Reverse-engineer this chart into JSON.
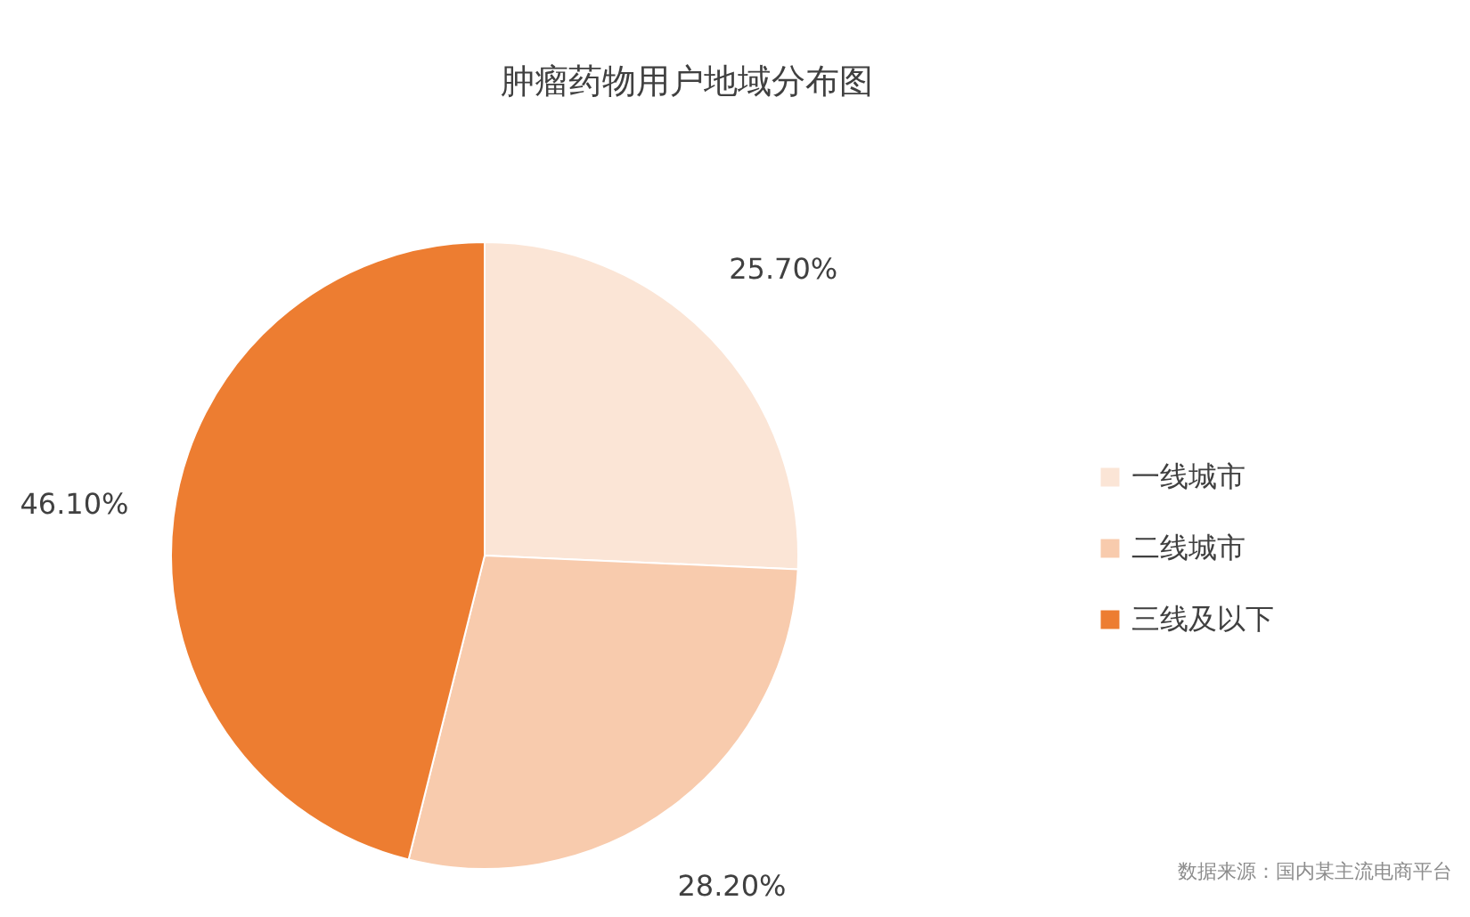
{
  "chart_data": {
    "type": "pie",
    "title": "肿瘤药物用户地域分布图",
    "categories": [
      "一线城市",
      "二线城市",
      "三线及以下"
    ],
    "values": [
      25.7,
      28.2,
      46.1
    ],
    "colors": [
      "#fbe5d6",
      "#f8cbad",
      "#ed7d31"
    ],
    "value_labels": [
      "25.70%",
      "28.20%",
      "46.10%"
    ],
    "legend": "right",
    "annotations": [
      "数据来源：国内某主流电商平台"
    ]
  }
}
